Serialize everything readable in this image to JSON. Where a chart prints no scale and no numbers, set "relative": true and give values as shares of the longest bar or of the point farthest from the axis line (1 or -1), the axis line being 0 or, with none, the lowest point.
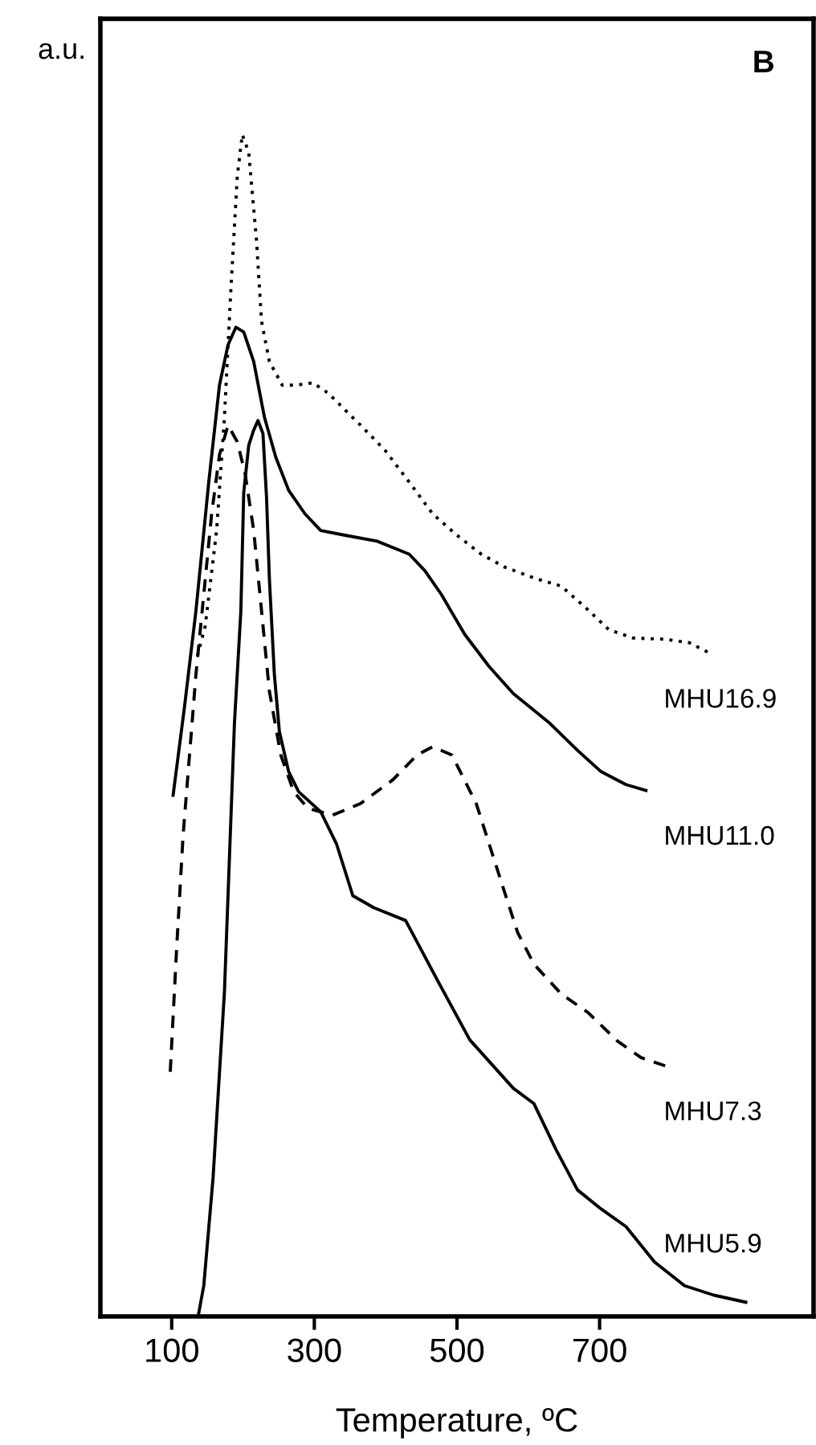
{
  "chart_data": {
    "type": "line",
    "title": "B",
    "xlabel": "Temperature, ºC",
    "ylabel": "a.u.",
    "relative": true,
    "tick_labels": "x",
    "xlim": [
      0,
      1000
    ],
    "xticks": [
      100,
      300,
      500,
      700
    ],
    "grid": false,
    "legend": false,
    "marker": "none",
    "series": [
      {
        "name": "MHU16.9",
        "color": "#000000",
        "line_style": "dotted",
        "x": [
          136,
          147,
          163,
          174,
          183,
          192,
          199,
          208,
          219,
          226,
          237,
          255,
          275,
          298,
          320,
          343,
          365,
          399,
          433,
          466,
          500,
          534,
          567,
          612,
          646,
          680,
          713,
          747,
          792,
          826,
          855
        ],
        "values": [
          0.559,
          0.584,
          0.665,
          0.761,
          0.869,
          0.965,
          1.0,
          0.985,
          0.91,
          0.842,
          0.808,
          0.788,
          0.788,
          0.79,
          0.781,
          0.767,
          0.754,
          0.733,
          0.706,
          0.679,
          0.661,
          0.645,
          0.634,
          0.624,
          0.618,
          0.6,
          0.581,
          0.574,
          0.573,
          0.57,
          0.561
        ]
      },
      {
        "name": "MHU11.0",
        "color": "#000000",
        "line_style": "solid",
        "x": [
          102,
          118,
          134,
          152,
          167,
          179,
          190,
          201,
          215,
          230,
          246,
          264,
          287,
          309,
          343,
          388,
          433,
          455,
          478,
          511,
          545,
          579,
          630,
          669,
          702,
          737,
          765
        ],
        "values": [
          0.441,
          0.516,
          0.597,
          0.706,
          0.788,
          0.822,
          0.837,
          0.833,
          0.808,
          0.761,
          0.727,
          0.699,
          0.679,
          0.665,
          0.661,
          0.656,
          0.645,
          0.631,
          0.611,
          0.577,
          0.55,
          0.527,
          0.502,
          0.479,
          0.461,
          0.45,
          0.445
        ]
      },
      {
        "name": "MHU7.3",
        "color": "#000000",
        "line_style": "dashed",
        "x": [
          98,
          107,
          116,
          125,
          134,
          145,
          156,
          167,
          179,
          192,
          203,
          215,
          226,
          237,
          253,
          271,
          291,
          325,
          365,
          410,
          444,
          466,
          493,
          527,
          563,
          585,
          608,
          646,
          684,
          725,
          758,
          792
        ],
        "values": [
          0.207,
          0.312,
          0.407,
          0.475,
          0.543,
          0.611,
          0.679,
          0.729,
          0.754,
          0.74,
          0.713,
          0.665,
          0.597,
          0.529,
          0.475,
          0.444,
          0.43,
          0.424,
          0.434,
          0.454,
          0.475,
          0.482,
          0.475,
          0.434,
          0.366,
          0.325,
          0.298,
          0.273,
          0.257,
          0.233,
          0.219,
          0.212
        ]
      },
      {
        "name": "MHU5.9",
        "color": "#000000",
        "line_style": "solid",
        "x": [
          138,
          145,
          158,
          174,
          188,
          197,
          201,
          208,
          215,
          221,
          228,
          233,
          237,
          244,
          251,
          264,
          278,
          309,
          331,
          354,
          383,
          428,
          473,
          518,
          579,
          608,
          639,
          669,
          702,
          737,
          777,
          819,
          860,
          905
        ],
        "values": [
          0.003,
          0.026,
          0.117,
          0.275,
          0.502,
          0.597,
          0.697,
          0.737,
          0.75,
          0.758,
          0.747,
          0.693,
          0.624,
          0.543,
          0.495,
          0.461,
          0.444,
          0.427,
          0.4,
          0.356,
          0.346,
          0.335,
          0.284,
          0.234,
          0.193,
          0.18,
          0.141,
          0.107,
          0.091,
          0.076,
          0.046,
          0.026,
          0.018,
          0.012
        ]
      }
    ]
  }
}
